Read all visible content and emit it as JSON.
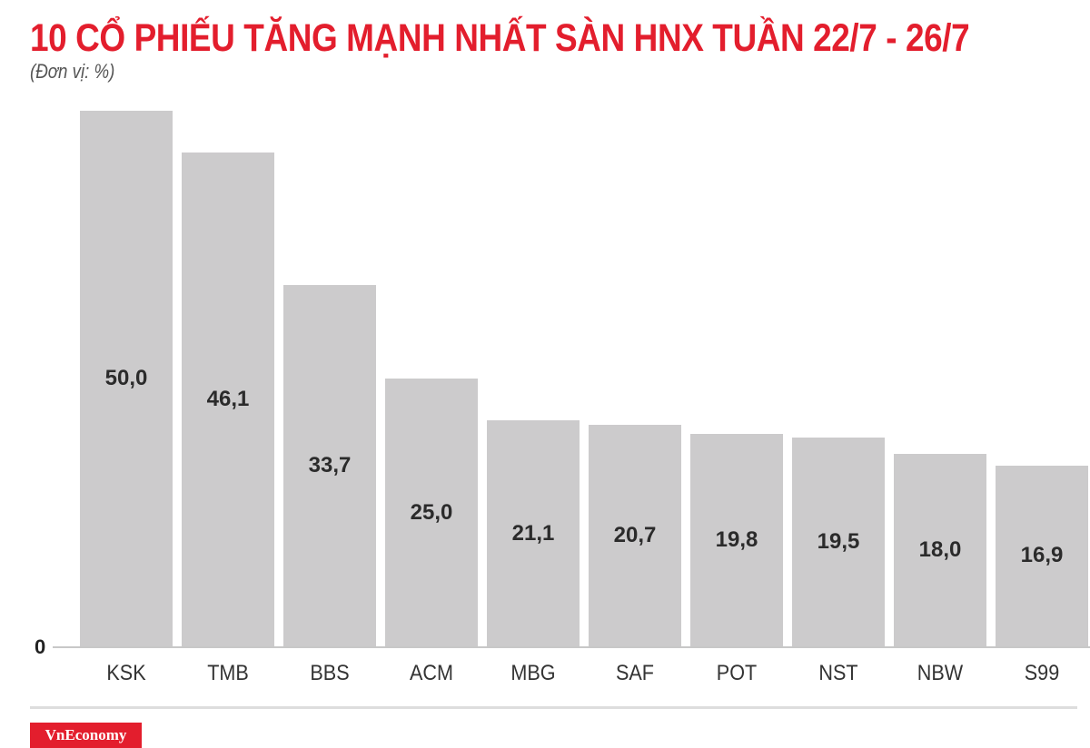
{
  "header": {
    "title": "10 CỔ PHIẾU TĂNG MẠNH NHẤT SÀN HNX TUẦN 22/7 - 26/7",
    "subtitle": "(Đơn vị: %)"
  },
  "axis": {
    "zero_label": "0"
  },
  "footer": {
    "logo": "VnEconomy"
  },
  "colors": {
    "title": "#e31e2d",
    "bar": "#cccbcc",
    "logo_bg": "#e31e2d"
  },
  "chart_data": {
    "type": "bar",
    "title": "10 CỔ PHIẾU TĂNG MẠNH NHẤT SÀN HNX TUẦN 22/7 - 26/7",
    "subtitle": "(Đơn vị: %)",
    "xlabel": "",
    "ylabel": "%",
    "categories": [
      "KSK",
      "TMB",
      "BBS",
      "ACM",
      "MBG",
      "SAF",
      "POT",
      "NST",
      "NBW",
      "S99"
    ],
    "values": [
      50.0,
      46.1,
      33.7,
      25.0,
      21.1,
      20.7,
      19.8,
      19.5,
      18.0,
      16.9
    ],
    "value_labels": [
      "50,0",
      "46,1",
      "33,7",
      "25,0",
      "21,1",
      "20,7",
      "19,8",
      "19,5",
      "18,0",
      "16,9"
    ],
    "ylim": [
      0,
      50
    ],
    "grid": false,
    "legend": "none"
  }
}
